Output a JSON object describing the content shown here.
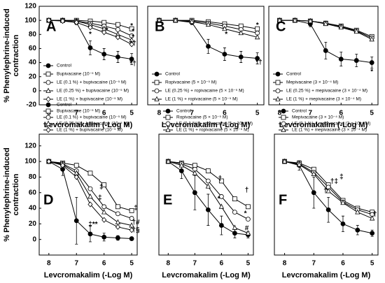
{
  "chart_data": [
    {
      "type": "line",
      "panel_label": "A",
      "xlabel": "Levcromakalim (-Log M)",
      "ylabel_lines": [
        "% Phenylephrine-induced",
        "contraction"
      ],
      "x": [
        8,
        7.5,
        7,
        6.5,
        6,
        5.5,
        5
      ],
      "xlim": [
        8.35,
        4.8
      ],
      "xticks": [
        8,
        7,
        6,
        5
      ],
      "ylim": [
        -20,
        120
      ],
      "yticks": [
        -20,
        0,
        20,
        40,
        60,
        80,
        100,
        120
      ],
      "legend": "inside",
      "series": [
        {
          "name": "Control",
          "color": "#000000",
          "marker": "filled-circle",
          "values": [
            100,
            100,
            97,
            61,
            52,
            48,
            45
          ],
          "errors": [
            1,
            1,
            3,
            10,
            8,
            8,
            8
          ]
        },
        {
          "name": "Bupivacaine (10⁻⁵ M)",
          "color": "#000000",
          "marker": "square",
          "values": [
            100,
            100,
            100,
            99,
            97,
            94,
            88
          ]
        },
        {
          "name": "LE (0.1 %) + bupivacaine (10⁻⁵ M)",
          "color": "#000000",
          "marker": "circle",
          "values": [
            100,
            100,
            99,
            96,
            92,
            87,
            78
          ]
        },
        {
          "name": "LE (0.25 %) + bupivacaine (10⁻⁵ M)",
          "color": "#000000",
          "marker": "triangle",
          "values": [
            100,
            100,
            99,
            94,
            88,
            80,
            72
          ]
        },
        {
          "name": "LE (1 %) + bupivacaine (10⁻⁵ M)",
          "color": "#000000",
          "marker": "diamond",
          "values": [
            100,
            99,
            97,
            90,
            83,
            76,
            66
          ]
        }
      ],
      "annotations": [
        {
          "text": "*",
          "x": 5,
          "y": 92
        },
        {
          "text": "*",
          "x": 4.95,
          "y": 84
        },
        {
          "text": "*",
          "x": 4.95,
          "y": 76
        },
        {
          "text": "*†",
          "x": 4.95,
          "y": 67
        },
        {
          "text": "*†",
          "x": 4.95,
          "y": 38
        },
        {
          "text": "*",
          "x": 6.5,
          "y": 80
        },
        {
          "text": "*",
          "x": 5.9,
          "y": 86
        }
      ]
    },
    {
      "type": "line",
      "panel_label": "B",
      "xlabel": "Levcromakalim (-Log M)",
      "x": [
        8,
        7.5,
        7,
        6.5,
        6,
        5.5,
        5
      ],
      "xlim": [
        8.35,
        4.8
      ],
      "xticks": [
        8,
        7,
        6,
        5
      ],
      "ylim": [
        -20,
        120
      ],
      "legend": "inside",
      "series": [
        {
          "name": "Control",
          "color": "#000000",
          "marker": "filled-circle",
          "values": [
            100,
            100,
            97,
            63,
            52,
            48,
            46
          ],
          "errors": [
            1,
            1,
            3,
            10,
            9,
            8,
            8
          ]
        },
        {
          "name": "Ropivacaine (5 × 10⁻⁵ M)",
          "color": "#000000",
          "marker": "square",
          "values": [
            100,
            100,
            100,
            98,
            95,
            92,
            88
          ]
        },
        {
          "name": "LE (0.25 %) + ropivacaine (5 × 10⁻⁵ M)",
          "color": "#000000",
          "marker": "circle",
          "values": [
            100,
            100,
            99,
            96,
            92,
            87,
            82
          ]
        },
        {
          "name": "LE (1 %) + ropivacaine (5 × 10⁻⁵ M)",
          "color": "#000000",
          "marker": "triangle",
          "values": [
            100,
            100,
            98,
            94,
            88,
            82,
            76
          ]
        }
      ],
      "annotations": [
        {
          "text": "*",
          "x": 5,
          "y": 93
        },
        {
          "text": "*",
          "x": 5.95,
          "y": 80
        },
        {
          "text": "*†",
          "x": 4.95,
          "y": 40
        }
      ]
    },
    {
      "type": "line",
      "panel_label": "C",
      "xlabel": "Levcromakalim (-Log M)",
      "x": [
        8,
        7.5,
        7,
        6.5,
        6,
        5.5,
        5
      ],
      "xlim": [
        8.35,
        4.8
      ],
      "xticks": [
        8,
        7,
        6,
        5
      ],
      "ylim": [
        -20,
        120
      ],
      "legend": "inside",
      "series": [
        {
          "name": "Control",
          "color": "#000000",
          "marker": "filled-circle",
          "values": [
            100,
            100,
            95,
            57,
            45,
            43,
            40
          ],
          "errors": [
            1,
            1,
            4,
            12,
            10,
            9,
            8
          ]
        },
        {
          "name": "Mepivacaine (3 × 10⁻⁴ M)",
          "color": "#000000",
          "marker": "square",
          "values": [
            100,
            100,
            99,
            96,
            92,
            86,
            77
          ]
        },
        {
          "name": "LE (0.25 %) + mepivacaine (3 × 10⁻⁴ M)",
          "color": "#000000",
          "marker": "circle",
          "values": [
            100,
            100,
            99,
            96,
            91,
            85,
            75
          ]
        },
        {
          "name": "LE (1 %) + mepivacaine (3 × 10⁻⁴ M)",
          "color": "#000000",
          "marker": "triangle",
          "values": [
            100,
            100,
            99,
            95,
            90,
            84,
            73
          ]
        }
      ],
      "annotations": [
        {
          "text": "*",
          "x": 5,
          "y": 27
        }
      ]
    },
    {
      "type": "line",
      "panel_label": "D",
      "xlabel": "Levcromakalim (-Log M)",
      "ylabel_lines": [
        "% Phenylephrine-induced",
        "contraction"
      ],
      "x": [
        8,
        7.5,
        7,
        6.5,
        6,
        5.5,
        5
      ],
      "xlim": [
        8.35,
        4.8
      ],
      "xticks": [
        8,
        7,
        6,
        5
      ],
      "ylim": [
        -20,
        135
      ],
      "yticks": [
        0,
        20,
        40,
        60,
        80,
        100,
        120
      ],
      "legend": "above",
      "series": [
        {
          "name": "Control",
          "color": "#000000",
          "marker": "filled-circle",
          "values": [
            100,
            90,
            24,
            7,
            3,
            2,
            1
          ],
          "errors": [
            2,
            8,
            30,
            10,
            5,
            3,
            2
          ]
        },
        {
          "name": "Bupivacaine (10⁻⁵ M)",
          "color": "#000000",
          "marker": "square",
          "values": [
            100,
            98,
            95,
            85,
            70,
            42,
            37
          ]
        },
        {
          "name": "LE (0.1 %) + bupivacaine (10⁻⁵ M)",
          "color": "#000000",
          "marker": "circle",
          "values": [
            100,
            97,
            88,
            65,
            42,
            33,
            27
          ]
        },
        {
          "name": "LE (0.25 %) + bupivacaine (10⁻⁵ M)",
          "color": "#000000",
          "marker": "triangle",
          "values": [
            100,
            96,
            85,
            55,
            35,
            22,
            18
          ]
        },
        {
          "name": "LE (1 %) + bupivacaine (10⁻⁵ M)",
          "color": "#000000",
          "marker": "diamond",
          "values": [
            100,
            95,
            80,
            45,
            25,
            16,
            12
          ]
        }
      ],
      "annotations": [
        {
          "text": "‡",
          "x": 4.85,
          "y": 40
        },
        {
          "text": "†#",
          "x": 4.85,
          "y": 22
        },
        {
          "text": "†§",
          "x": 4.85,
          "y": 12
        },
        {
          "text": "‡",
          "x": 6.1,
          "y": 67
        },
        {
          "text": "‡",
          "x": 6.15,
          "y": 53
        },
        {
          "text": "‡**",
          "x": 6.4,
          "y": 19
        }
      ]
    },
    {
      "type": "line",
      "panel_label": "E",
      "xlabel": "Levcromakalim (-Log M)",
      "x": [
        8,
        7.5,
        7,
        6.5,
        6,
        5.5,
        5
      ],
      "xlim": [
        8.35,
        4.8
      ],
      "xticks": [
        8,
        7,
        6,
        5
      ],
      "ylim": [
        -20,
        135
      ],
      "legend": "above",
      "series": [
        {
          "name": "Control",
          "color": "#000000",
          "marker": "filled-circle",
          "values": [
            100,
            88,
            60,
            38,
            18,
            8,
            6
          ],
          "errors": [
            2,
            10,
            22,
            20,
            12,
            6,
            4
          ]
        },
        {
          "name": "Ropivacaine (5 × 10⁻⁵ M)",
          "color": "#000000",
          "marker": "square",
          "values": [
            100,
            98,
            95,
            88,
            75,
            52,
            42
          ]
        },
        {
          "name": "LE (0.1 %) + ropivacaine (5 × 10⁻⁵ M)",
          "color": "#000000",
          "marker": "circle",
          "values": [
            100,
            97,
            90,
            75,
            55,
            35,
            26
          ]
        },
        {
          "name": "LE (1 %) + ropivacaine (5 × 10⁻⁵ M)",
          "color": "#000000",
          "marker": "triangle",
          "values": [
            100,
            95,
            85,
            68,
            42,
            15,
            8
          ]
        }
      ],
      "annotations": [
        {
          "text": "†",
          "x": 5.05,
          "y": 63
        },
        {
          "text": "*",
          "x": 5.1,
          "y": 33
        },
        {
          "text": "#",
          "x": 5.05,
          "y": 14
        },
        {
          "text": "†",
          "x": 6.05,
          "y": 78
        },
        {
          "text": "*",
          "x": 6.1,
          "y": 52
        }
      ]
    },
    {
      "type": "line",
      "panel_label": "F",
      "xlabel": "Levcromakalim (-Log M)",
      "x": [
        8,
        7.5,
        7,
        6.5,
        6,
        5.5,
        5
      ],
      "xlim": [
        8.35,
        4.8
      ],
      "xticks": [
        8,
        7,
        6,
        5
      ],
      "ylim": [
        -20,
        135
      ],
      "legend": "above",
      "series": [
        {
          "name": "Control",
          "color": "#000000",
          "marker": "filled-circle",
          "values": [
            100,
            95,
            60,
            38,
            20,
            12,
            8
          ],
          "errors": [
            2,
            6,
            20,
            16,
            10,
            6,
            4
          ]
        },
        {
          "name": "Mepivacaine (3 × 10⁻⁴ M)",
          "color": "#000000",
          "marker": "square",
          "values": [
            100,
            98,
            90,
            70,
            50,
            40,
            35
          ]
        },
        {
          "name": "LE (0.1 %) + mepivacaine (3 × 10⁻⁴ M)",
          "color": "#000000",
          "marker": "circle",
          "values": [
            100,
            97,
            86,
            67,
            48,
            38,
            32
          ]
        },
        {
          "name": "LE (1 %) + mepivacaine (3 × 10⁻⁴ M)",
          "color": "#000000",
          "marker": "triangle",
          "values": [
            100,
            96,
            84,
            62,
            47,
            35,
            27
          ]
        }
      ],
      "annotations": [
        {
          "text": "†",
          "x": 6.6,
          "y": 62
        },
        {
          "text": "†‡",
          "x": 6.3,
          "y": 74
        },
        {
          "text": "‡",
          "x": 6.05,
          "y": 80
        },
        {
          "text": "†",
          "x": 4.9,
          "y": 32
        }
      ]
    }
  ]
}
